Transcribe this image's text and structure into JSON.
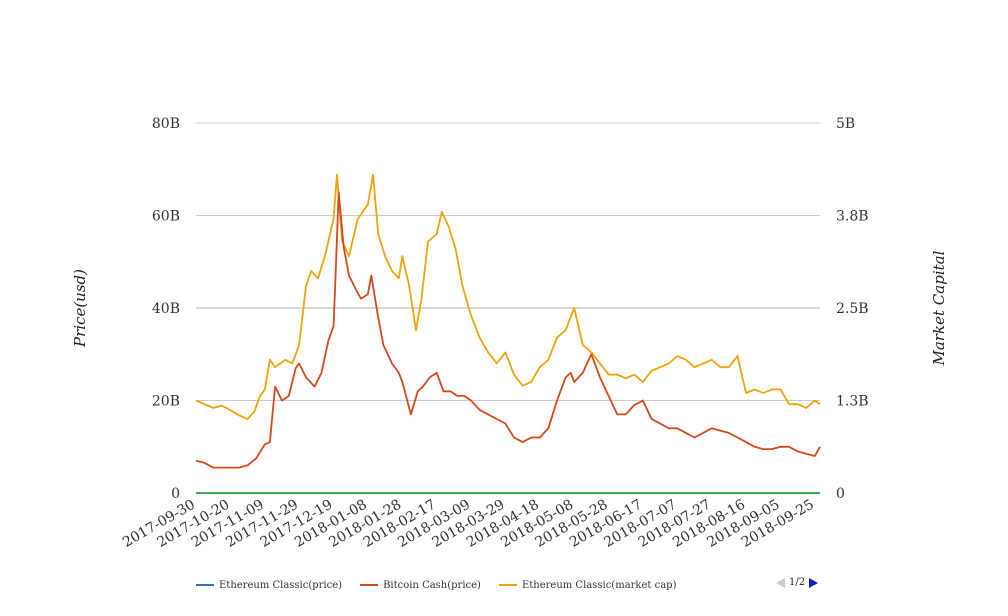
{
  "chart_data": {
    "type": "line",
    "ylabel_left": "Price(usd)",
    "ylabel_right": "Market Capital",
    "y_left_ticks": [
      "0",
      "20B",
      "40B",
      "60B",
      "80B"
    ],
    "y_left_range": [
      0,
      80
    ],
    "y_right_ticks": [
      "0",
      "1.3B",
      "2.5B",
      "3.8B",
      "5B"
    ],
    "y_right_range": [
      0,
      5
    ],
    "x_ticks": [
      "2017-09-30",
      "2017-10-20",
      "2017-11-09",
      "2017-11-29",
      "2017-12-19",
      "2018-01-08",
      "2018-01-28",
      "2018-02-17",
      "2018-03-09",
      "2018-03-29",
      "2018-04-18",
      "2018-05-08",
      "2018-05-28",
      "2018-06-17",
      "2018-07-07",
      "2018-07-27",
      "2018-08-16",
      "2018-09-05",
      "2018-09-25"
    ],
    "x_range": [
      "2017-09-30",
      "2018-09-28"
    ],
    "grid": true,
    "legend_position": "bottom",
    "series": [
      {
        "name": "Ethereum Classic(price)",
        "color": "#3a6fb0",
        "axis": "left",
        "x": [
          "2017-09-30",
          "2018-09-28"
        ],
        "y": [
          0,
          0
        ]
      },
      {
        "name": "Bitcoin Cash(price)",
        "color": "#d24a1c",
        "axis": "left",
        "x": [
          "2017-09-30",
          "2017-10-05",
          "2017-10-10",
          "2017-10-15",
          "2017-10-20",
          "2017-10-25",
          "2017-10-30",
          "2017-11-04",
          "2017-11-09",
          "2017-11-12",
          "2017-11-15",
          "2017-11-19",
          "2017-11-23",
          "2017-11-27",
          "2017-11-29",
          "2017-12-03",
          "2017-12-08",
          "2017-12-12",
          "2017-12-16",
          "2017-12-19",
          "2017-12-20",
          "2017-12-22",
          "2017-12-25",
          "2017-12-28",
          "2018-01-01",
          "2018-01-04",
          "2018-01-08",
          "2018-01-10",
          "2018-01-14",
          "2018-01-17",
          "2018-01-22",
          "2018-01-26",
          "2018-01-28",
          "2018-02-02",
          "2018-02-06",
          "2018-02-09",
          "2018-02-13",
          "2018-02-17",
          "2018-02-21",
          "2018-02-25",
          "2018-03-01",
          "2018-03-05",
          "2018-03-09",
          "2018-03-14",
          "2018-03-19",
          "2018-03-24",
          "2018-03-29",
          "2018-04-03",
          "2018-04-08",
          "2018-04-13",
          "2018-04-18",
          "2018-04-23",
          "2018-04-28",
          "2018-05-03",
          "2018-05-06",
          "2018-05-08",
          "2018-05-13",
          "2018-05-18",
          "2018-05-23",
          "2018-05-28",
          "2018-06-02",
          "2018-06-07",
          "2018-06-12",
          "2018-06-17",
          "2018-06-22",
          "2018-06-27",
          "2018-07-02",
          "2018-07-07",
          "2018-07-12",
          "2018-07-17",
          "2018-07-22",
          "2018-07-27",
          "2018-08-01",
          "2018-08-06",
          "2018-08-11",
          "2018-08-16",
          "2018-08-21",
          "2018-08-26",
          "2018-08-31",
          "2018-09-05",
          "2018-09-10",
          "2018-09-15",
          "2018-09-20",
          "2018-09-25",
          "2018-09-28"
        ],
        "y": [
          7,
          6.5,
          5.5,
          5.5,
          5.5,
          5.5,
          6,
          7.5,
          10.5,
          11,
          23,
          20,
          21,
          27,
          28,
          25,
          23,
          26,
          33,
          36,
          45,
          65,
          53,
          47,
          44,
          42,
          43,
          47,
          38,
          32,
          28,
          26,
          24,
          17,
          22,
          23,
          25,
          26,
          22,
          22,
          21,
          21,
          20,
          18,
          17,
          16,
          15,
          12,
          11,
          12,
          12,
          14,
          20,
          25,
          26,
          24,
          26,
          30,
          25,
          21,
          17,
          17,
          19,
          20,
          16,
          15,
          14,
          14,
          13,
          12,
          13,
          14,
          13.5,
          13,
          12,
          11,
          10,
          9.5,
          9.5,
          10,
          10,
          9,
          8.5,
          8,
          10
        ]
      },
      {
        "name": "Ethereum Classic(market cap)",
        "color": "#f0a30a",
        "axis": "right",
        "x": [
          "2017-09-30",
          "2017-10-05",
          "2017-10-10",
          "2017-10-15",
          "2017-10-20",
          "2017-10-25",
          "2017-10-30",
          "2017-11-03",
          "2017-11-06",
          "2017-11-09",
          "2017-11-12",
          "2017-11-15",
          "2017-11-18",
          "2017-11-21",
          "2017-11-25",
          "2017-11-29",
          "2017-12-03",
          "2017-12-06",
          "2017-12-10",
          "2017-12-14",
          "2017-12-19",
          "2017-12-21",
          "2017-12-24",
          "2017-12-28",
          "2018-01-02",
          "2018-01-05",
          "2018-01-08",
          "2018-01-11",
          "2018-01-14",
          "2018-01-18",
          "2018-01-22",
          "2018-01-26",
          "2018-01-28",
          "2018-02-01",
          "2018-02-05",
          "2018-02-08",
          "2018-02-12",
          "2018-02-17",
          "2018-02-20",
          "2018-02-24",
          "2018-02-28",
          "2018-03-04",
          "2018-03-09",
          "2018-03-14",
          "2018-03-19",
          "2018-03-24",
          "2018-03-29",
          "2018-04-03",
          "2018-04-08",
          "2018-04-13",
          "2018-04-18",
          "2018-04-23",
          "2018-04-28",
          "2018-05-03",
          "2018-05-08",
          "2018-05-13",
          "2018-05-18",
          "2018-05-23",
          "2018-05-28",
          "2018-06-02",
          "2018-06-07",
          "2018-06-12",
          "2018-06-17",
          "2018-06-22",
          "2018-06-27",
          "2018-07-02",
          "2018-07-07",
          "2018-07-12",
          "2018-07-17",
          "2018-07-22",
          "2018-07-27",
          "2018-08-01",
          "2018-08-06",
          "2018-08-11",
          "2018-08-16",
          "2018-08-21",
          "2018-08-26",
          "2018-08-31",
          "2018-09-05",
          "2018-09-10",
          "2018-09-15",
          "2018-09-20",
          "2018-09-25",
          "2018-09-28"
        ],
        "y": [
          1.25,
          1.2,
          1.15,
          1.18,
          1.12,
          1.05,
          1.0,
          1.1,
          1.3,
          1.4,
          1.8,
          1.7,
          1.75,
          1.8,
          1.75,
          2.0,
          2.8,
          3.0,
          2.9,
          3.2,
          3.7,
          4.3,
          3.4,
          3.2,
          3.7,
          3.8,
          3.9,
          4.3,
          3.5,
          3.2,
          3.0,
          2.9,
          3.2,
          2.8,
          2.2,
          2.6,
          3.4,
          3.5,
          3.8,
          3.6,
          3.3,
          2.8,
          2.4,
          2.1,
          1.9,
          1.75,
          1.9,
          1.6,
          1.45,
          1.5,
          1.7,
          1.8,
          2.1,
          2.2,
          2.5,
          2.0,
          1.9,
          1.75,
          1.6,
          1.6,
          1.55,
          1.6,
          1.5,
          1.65,
          1.7,
          1.75,
          1.85,
          1.8,
          1.7,
          1.75,
          1.8,
          1.7,
          1.7,
          1.85,
          1.35,
          1.4,
          1.35,
          1.4,
          1.4,
          1.2,
          1.2,
          1.15,
          1.25,
          1.2
        ]
      }
    ]
  },
  "legend": {
    "items": [
      {
        "label": "Ethereum Classic(price)",
        "color": "#3a6fb0"
      },
      {
        "label": "Bitcoin Cash(price)",
        "color": "#d24a1c"
      },
      {
        "label": "Ethereum Classic(market cap)",
        "color": "#f0a30a"
      }
    ],
    "page_label": "1/2"
  },
  "colors": {
    "gridline": "#cccccc",
    "zero_line": "#2a9a3a"
  }
}
